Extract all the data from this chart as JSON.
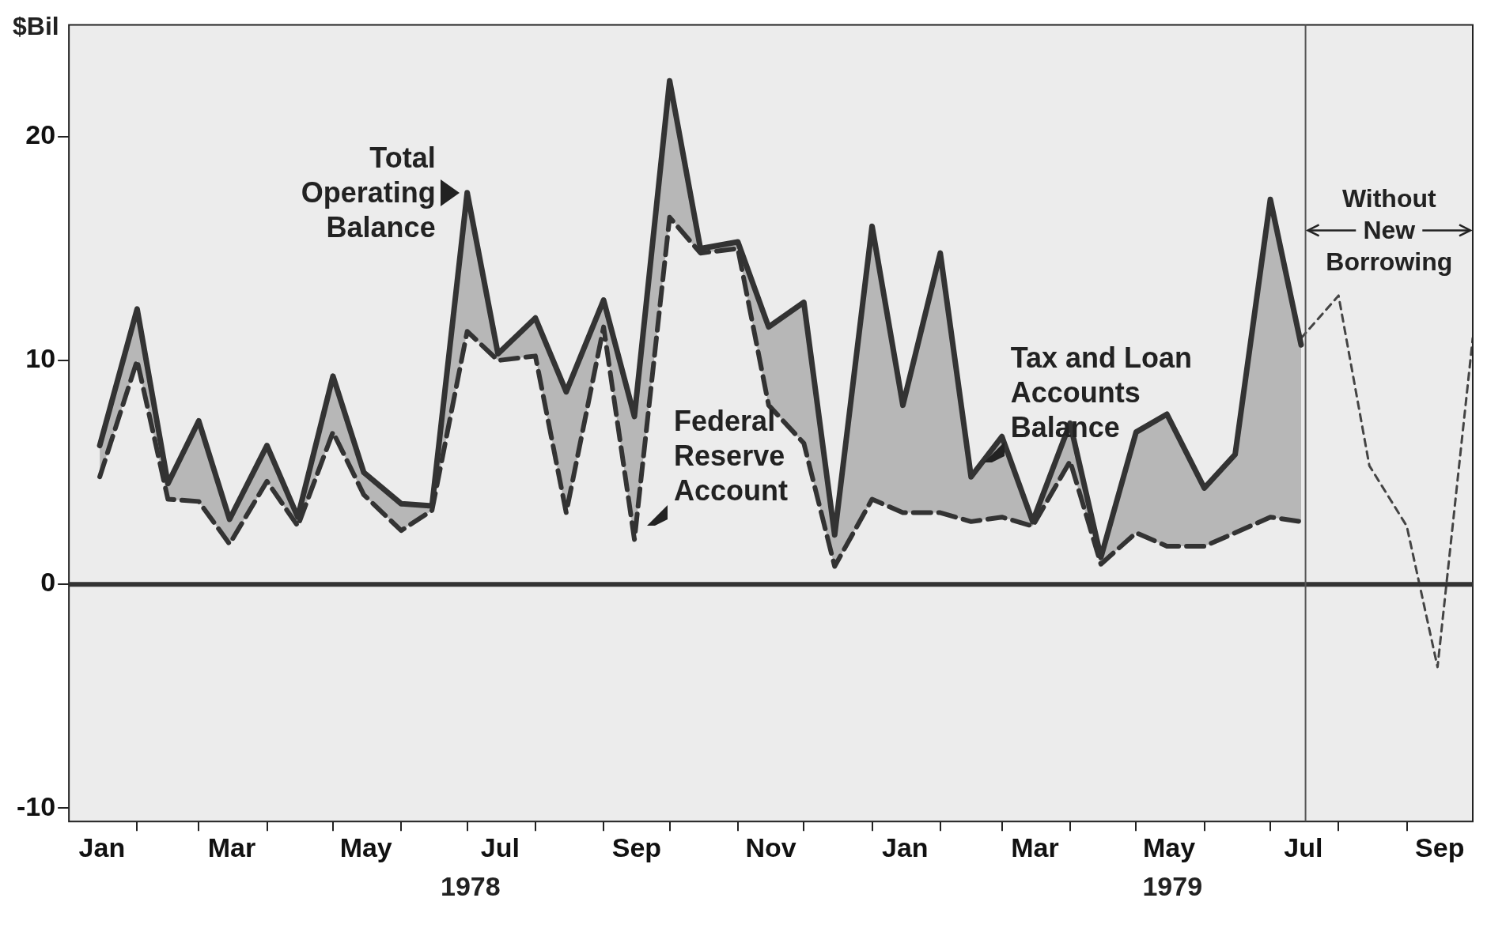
{
  "chart_data": {
    "type": "line",
    "ylabel": "$Bil",
    "x": [
      "1978-01-15",
      "1978-02-01",
      "1978-02-15",
      "1978-03-01",
      "1978-03-15",
      "1978-04-01",
      "1978-04-15",
      "1978-05-01",
      "1978-05-15",
      "1978-06-01",
      "1978-06-15",
      "1978-07-01",
      "1978-07-15",
      "1978-08-01",
      "1978-08-15",
      "1978-09-01",
      "1978-09-15",
      "1978-10-01",
      "1978-10-15",
      "1978-11-01",
      "1978-11-15",
      "1978-12-01",
      "1978-12-15",
      "1979-01-01",
      "1979-01-15",
      "1979-02-01",
      "1979-02-15",
      "1979-03-01",
      "1979-03-15",
      "1979-04-01",
      "1979-04-15",
      "1979-05-01",
      "1979-05-15",
      "1979-06-01",
      "1979-06-15",
      "1979-07-01",
      "1979-07-15"
    ],
    "series": [
      {
        "color": "#333333",
        "line_style": "solid",
        "values": [
          6.2,
          12.3,
          4.5,
          7.3,
          2.9,
          6.2,
          3.0,
          9.3,
          5.0,
          3.6,
          3.5,
          17.5,
          10.3,
          11.9,
          8.6,
          12.7,
          7.5,
          22.5,
          15.0,
          15.3,
          11.5,
          12.6,
          2.2,
          16.0,
          8.0,
          14.8,
          4.8,
          6.6,
          2.8,
          7.2,
          1.2,
          6.8,
          7.6,
          4.3,
          5.8,
          17.2,
          10.7
        ],
        "lower": [
          4.8,
          10.0,
          3.8,
          3.7,
          1.8,
          4.6,
          2.6,
          6.8,
          4.0,
          2.4,
          3.3,
          11.3,
          10.0,
          10.2,
          3.2,
          11.5,
          2.0,
          16.4,
          14.8,
          15.0,
          8.0,
          6.3,
          0.8,
          3.8,
          3.2,
          3.2,
          2.8,
          3.0,
          2.6,
          5.5,
          0.9,
          2.3,
          1.7,
          1.7,
          2.3,
          3.0,
          2.8
        ],
        "upper": [
          6.2,
          12.3,
          4.5,
          7.3,
          2.9,
          6.2,
          3.0,
          9.3,
          5.0,
          3.6,
          3.5,
          17.5,
          10.3,
          11.9,
          8.6,
          12.7,
          7.5,
          22.5,
          15.0,
          15.3,
          11.5,
          12.6,
          2.2,
          16.0,
          8.0,
          14.8,
          4.8,
          6.6,
          2.8,
          7.2,
          1.2,
          6.8,
          7.6,
          4.3,
          5.8,
          17.2,
          10.7
        ]
      },
      {
        "color": "#333333",
        "line_style": "dashed",
        "values": [
          4.8,
          10.0,
          3.8,
          3.7,
          1.8,
          4.6,
          2.6,
          6.8,
          4.0,
          2.4,
          3.3,
          11.3,
          10.0,
          10.2,
          3.2,
          11.5,
          2.0,
          16.4,
          14.8,
          15.0,
          8.0,
          6.3,
          0.8,
          3.8,
          3.2,
          3.2,
          2.8,
          3.0,
          2.6,
          5.5,
          0.9,
          2.3,
          1.7,
          1.7,
          2.3,
          3.0,
          2.8
        ]
      },
      {
        "color": "#444444",
        "line_style": "dotted",
        "x": [
          "1979-07-15",
          "1979-08-01",
          "1979-08-15",
          "1979-09-01",
          "1979-09-15",
          "1979-10-01"
        ],
        "values": [
          11.0,
          12.9,
          5.3,
          2.6,
          -3.7,
          11.0
        ]
      }
    ],
    "xlim": [
      "1978-01-01",
      "1979-10-01"
    ],
    "xticks": [
      {
        "value": "1978-01-16",
        "label": "Jan"
      },
      {
        "value": "1978-02-01",
        "label": null
      },
      {
        "value": "1978-03-01",
        "label": null
      },
      {
        "value": "1978-03-16",
        "label": "Mar"
      },
      {
        "value": "1978-04-01",
        "label": null
      },
      {
        "value": "1978-05-01",
        "label": null
      },
      {
        "value": "1978-05-16",
        "label": "May"
      },
      {
        "value": "1978-06-01",
        "label": null
      },
      {
        "value": "1978-07-01",
        "label": null
      },
      {
        "value": "1978-07-16",
        "label": "Jul"
      },
      {
        "value": "1978-08-01",
        "label": null
      },
      {
        "value": "1978-09-01",
        "label": null
      },
      {
        "value": "1978-09-16",
        "label": "Sep"
      },
      {
        "value": "1978-10-01",
        "label": null
      },
      {
        "value": "1978-11-01",
        "label": null
      },
      {
        "value": "1978-11-16",
        "label": "Nov"
      },
      {
        "value": "1978-12-01",
        "label": null
      },
      {
        "value": "1979-01-01",
        "label": null
      },
      {
        "value": "1979-01-16",
        "label": "Jan"
      },
      {
        "value": "1979-02-01",
        "label": null
      },
      {
        "value": "1979-03-01",
        "label": null
      },
      {
        "value": "1979-03-16",
        "label": "Mar"
      },
      {
        "value": "1979-04-01",
        "label": null
      },
      {
        "value": "1979-05-01",
        "label": null
      },
      {
        "value": "1979-05-16",
        "label": "May"
      },
      {
        "value": "1979-06-01",
        "label": null
      },
      {
        "value": "1979-07-01",
        "label": null
      },
      {
        "value": "1979-07-16",
        "label": "Jul"
      },
      {
        "value": "1979-08-01",
        "label": null
      },
      {
        "value": "1979-09-01",
        "label": null
      },
      {
        "value": "1979-09-16",
        "label": "Sep"
      }
    ],
    "ylim": [
      -10.6,
      25
    ],
    "yticks": [
      -10,
      0,
      10,
      20
    ],
    "ref_lines": [
      {
        "axis": "y",
        "value": 0,
        "color": "#333333"
      },
      {
        "axis": "x",
        "value": "1979-07-17",
        "label": "Without New Borrowing",
        "color": "#555555"
      }
    ],
    "annotations": [
      {
        "text": "Total Operating Balance",
        "x": "1978-07-01",
        "y": 17.5
      },
      {
        "text": "Federal Reserve Account",
        "x": "1978-09-15",
        "y": 2.0
      },
      {
        "text": "Tax and Loan Accounts Balance",
        "x": "1979-02-15",
        "y": 4.8
      },
      "1978",
      "1979"
    ],
    "grid": false,
    "legend": false,
    "marker": "none"
  }
}
